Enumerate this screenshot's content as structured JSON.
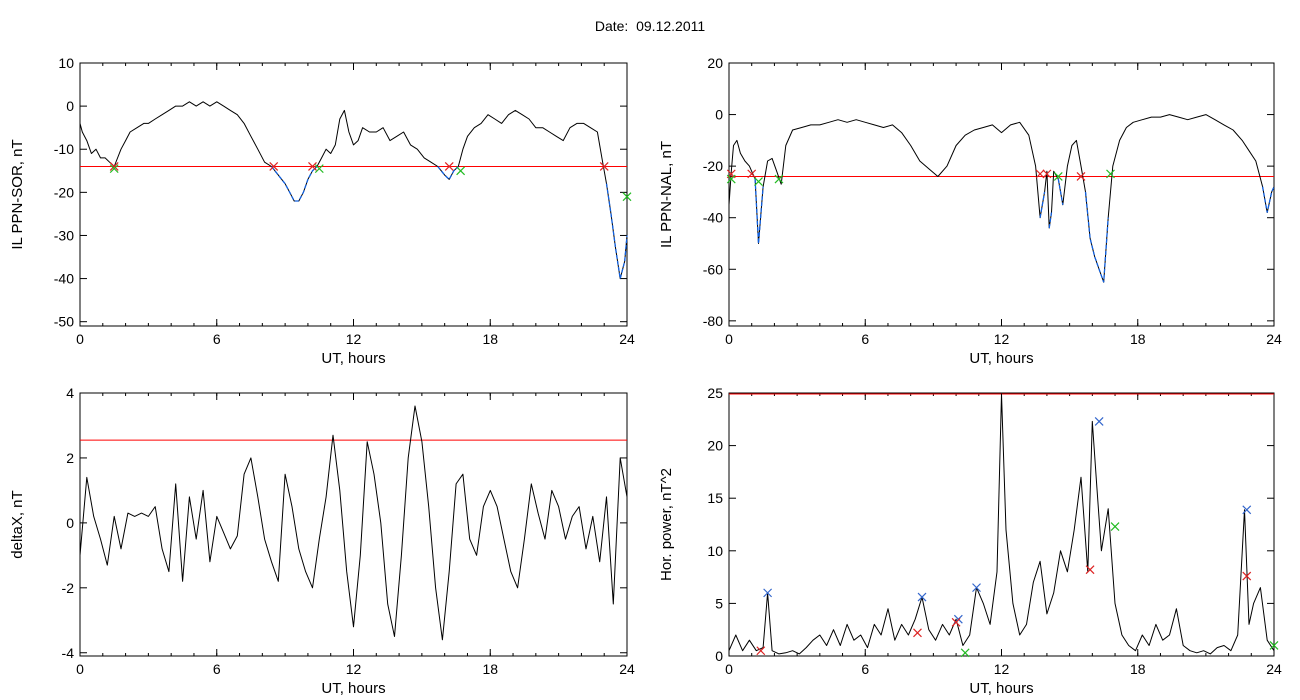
{
  "header": {
    "date_label": "Date:",
    "date_value": "09.12.2011"
  },
  "chart_data": [
    {
      "type": "line",
      "xlabel": "UT, hours",
      "ylabel": "IL PPN-SOR, nT",
      "xlim": [
        0,
        24
      ],
      "ylim": [
        -51,
        10
      ],
      "xticks": [
        0,
        6,
        12,
        18,
        24
      ],
      "yticks": [
        10,
        0,
        -10,
        -20,
        -30,
        -40,
        -50
      ],
      "threshold": -14,
      "colors": {
        "line": "#000000",
        "threshold": "#ff0000",
        "highlight": "#1060e0",
        "start_marker": "#dd2222",
        "end_marker": "#22bb22"
      },
      "series": [
        {
          "values_x": [
            0,
            0.1,
            0.3,
            0.5,
            0.7,
            0.9,
            1.1,
            1.3,
            1.5,
            1.8,
            2.0,
            2.2,
            2.5,
            2.8,
            3.0,
            3.3,
            3.6,
            3.9,
            4.2,
            4.5,
            4.8,
            5.1,
            5.4,
            5.7,
            6.0,
            6.3,
            6.6,
            6.9,
            7.2,
            7.5,
            7.8,
            8.1,
            8.4,
            8.7,
            9.0,
            9.2,
            9.4,
            9.6,
            9.8,
            10.0,
            10.2,
            10.4,
            10.6,
            10.8,
            11.0,
            11.2,
            11.4,
            11.6,
            11.8,
            12.0,
            12.2,
            12.4,
            12.7,
            13.0,
            13.3,
            13.6,
            13.9,
            14.2,
            14.5,
            14.8,
            15.1,
            15.4,
            15.7,
            16.0,
            16.2,
            16.4,
            16.6,
            16.8,
            17.0,
            17.3,
            17.6,
            17.9,
            18.2,
            18.5,
            18.8,
            19.1,
            19.4,
            19.7,
            20.0,
            20.3,
            20.6,
            20.9,
            21.2,
            21.5,
            21.8,
            22.1,
            22.4,
            22.7,
            22.9,
            23.1,
            23.3,
            23.5,
            23.7,
            23.9,
            24.0
          ],
          "values_y": [
            -4,
            -6,
            -8,
            -11,
            -10,
            -12,
            -12,
            -13,
            -14,
            -10,
            -8,
            -6,
            -5,
            -4,
            -4,
            -3,
            -2,
            -1,
            0,
            0,
            1,
            0,
            1,
            0,
            1,
            0,
            -1,
            -2,
            -4,
            -7,
            -10,
            -13,
            -14,
            -16,
            -18,
            -20,
            -22,
            -22,
            -20,
            -17,
            -15,
            -14,
            -12,
            -10,
            -11,
            -9,
            -3,
            -1,
            -6,
            -9,
            -8,
            -5,
            -6,
            -6,
            -5,
            -8,
            -7,
            -6,
            -9,
            -10,
            -12,
            -13,
            -14,
            -16,
            -17,
            -15,
            -14,
            -10,
            -7,
            -5,
            -4,
            -2,
            -3,
            -4,
            -2,
            -1,
            -2,
            -3,
            -5,
            -5,
            -6,
            -7,
            -8,
            -5,
            -4,
            -4,
            -5,
            -6,
            -12,
            -18,
            -25,
            -33,
            -40,
            -36,
            -30
          ]
        }
      ],
      "start_markers": [
        [
          1.5,
          -14
        ],
        [
          8.5,
          -14
        ],
        [
          10.2,
          -14
        ],
        [
          16.2,
          -14
        ],
        [
          23.0,
          -14
        ]
      ],
      "end_markers": [
        [
          1.5,
          -14.5
        ],
        [
          10.5,
          -14.5
        ],
        [
          16.7,
          -15
        ],
        [
          24.0,
          -21
        ]
      ]
    },
    {
      "type": "line",
      "xlabel": "UT, hours",
      "ylabel": "IL PPN-NAL, nT",
      "xlim": [
        0,
        24
      ],
      "ylim": [
        -82,
        20
      ],
      "xticks": [
        0,
        6,
        12,
        18,
        24
      ],
      "yticks": [
        20,
        0,
        -20,
        -40,
        -60,
        -80
      ],
      "threshold": -24,
      "colors": {
        "line": "#000000",
        "threshold": "#ff0000",
        "highlight": "#1060e0",
        "start_marker": "#dd2222",
        "end_marker": "#22bb22"
      },
      "series": [
        {
          "values_x": [
            0,
            0.1,
            0.2,
            0.35,
            0.5,
            0.7,
            0.9,
            1.0,
            1.15,
            1.3,
            1.5,
            1.7,
            1.9,
            2.1,
            2.3,
            2.5,
            2.8,
            3.2,
            3.6,
            4.0,
            4.4,
            4.8,
            5.2,
            5.6,
            6.0,
            6.4,
            6.8,
            7.2,
            7.6,
            8.0,
            8.4,
            8.8,
            9.2,
            9.6,
            10.0,
            10.4,
            10.8,
            11.2,
            11.6,
            12.0,
            12.4,
            12.8,
            13.2,
            13.5,
            13.7,
            13.9,
            14.0,
            14.1,
            14.2,
            14.3,
            14.5,
            14.7,
            14.9,
            15.1,
            15.3,
            15.5,
            15.7,
            15.9,
            16.1,
            16.3,
            16.5,
            16.7,
            16.9,
            17.2,
            17.5,
            17.8,
            18.2,
            18.6,
            19.0,
            19.4,
            19.8,
            20.2,
            20.6,
            21.0,
            21.4,
            21.8,
            22.2,
            22.6,
            22.9,
            23.2,
            23.5,
            23.7,
            23.9,
            24.0
          ],
          "values_y": [
            -35,
            -22,
            -12,
            -10,
            -15,
            -18,
            -20,
            -22,
            -25,
            -50,
            -28,
            -18,
            -17,
            -22,
            -27,
            -12,
            -6,
            -5,
            -4,
            -4,
            -3,
            -2,
            -3,
            -2,
            -3,
            -4,
            -5,
            -4,
            -7,
            -12,
            -18,
            -21,
            -24,
            -20,
            -12,
            -8,
            -6,
            -5,
            -4,
            -7,
            -4,
            -3,
            -8,
            -20,
            -40,
            -30,
            -22,
            -44,
            -38,
            -22,
            -25,
            -35,
            -20,
            -12,
            -10,
            -20,
            -30,
            -48,
            -55,
            -60,
            -65,
            -40,
            -20,
            -10,
            -5,
            -3,
            -2,
            -1,
            -1,
            0,
            -1,
            -2,
            -1,
            0,
            -2,
            -4,
            -6,
            -10,
            -14,
            -18,
            -28,
            -38,
            -30,
            -28
          ]
        }
      ],
      "start_markers": [
        [
          0.1,
          -23
        ],
        [
          1.0,
          -23
        ],
        [
          13.7,
          -23
        ],
        [
          14.0,
          -23
        ],
        [
          15.5,
          -24
        ]
      ],
      "end_markers": [
        [
          0.1,
          -25
        ],
        [
          1.3,
          -26
        ],
        [
          2.2,
          -25
        ],
        [
          14.5,
          -24
        ],
        [
          16.8,
          -23
        ]
      ]
    },
    {
      "type": "line",
      "xlabel": "UT, hours",
      "ylabel": "deltaX, nT",
      "xlim": [
        0,
        24
      ],
      "ylim": [
        -4.1,
        4
      ],
      "xticks": [
        0,
        6,
        12,
        18,
        24
      ],
      "yticks": [
        4,
        2,
        0,
        -2,
        -4
      ],
      "threshold": 2.55,
      "colors": {
        "line": "#000000",
        "threshold": "#ff0000"
      },
      "series": [
        {
          "values_x": [
            0,
            0.3,
            0.6,
            0.9,
            1.2,
            1.5,
            1.8,
            2.1,
            2.4,
            2.7,
            3.0,
            3.3,
            3.6,
            3.9,
            4.2,
            4.5,
            4.8,
            5.1,
            5.4,
            5.7,
            6.0,
            6.3,
            6.6,
            6.9,
            7.2,
            7.5,
            7.8,
            8.1,
            8.4,
            8.7,
            9.0,
            9.3,
            9.6,
            9.9,
            10.2,
            10.5,
            10.8,
            11.1,
            11.4,
            11.7,
            12.0,
            12.3,
            12.6,
            12.9,
            13.2,
            13.5,
            13.8,
            14.1,
            14.4,
            14.7,
            15.0,
            15.3,
            15.6,
            15.9,
            16.2,
            16.5,
            16.8,
            17.1,
            17.4,
            17.7,
            18.0,
            18.3,
            18.6,
            18.9,
            19.2,
            19.5,
            19.8,
            20.1,
            20.4,
            20.7,
            21.0,
            21.3,
            21.6,
            21.9,
            22.2,
            22.5,
            22.8,
            23.1,
            23.4,
            23.7,
            24.0
          ],
          "values_y": [
            -1,
            1.4,
            0.2,
            -0.5,
            -1.3,
            0.2,
            -0.8,
            0.3,
            0.2,
            0.3,
            0.2,
            0.5,
            -0.8,
            -1.5,
            1.2,
            -1.8,
            0.8,
            -0.5,
            1.0,
            -1.2,
            0.2,
            -0.3,
            -0.8,
            -0.4,
            1.5,
            2.0,
            0.8,
            -0.5,
            -1.2,
            -1.8,
            1.5,
            0.5,
            -0.8,
            -1.5,
            -2.0,
            -0.5,
            0.8,
            2.7,
            1.0,
            -1.5,
            -3.2,
            -1.0,
            2.5,
            1.5,
            0,
            -2.5,
            -3.5,
            -1.0,
            2.0,
            3.6,
            2.5,
            0.5,
            -2.0,
            -3.6,
            -1.5,
            1.2,
            1.5,
            -0.5,
            -1.0,
            0.5,
            1.0,
            0.5,
            -0.5,
            -1.5,
            -2.0,
            -0.5,
            1.2,
            0.3,
            -0.5,
            1.0,
            0.5,
            -0.5,
            0.2,
            0.5,
            -0.8,
            0.2,
            -1.2,
            0.8,
            -2.5,
            2.0,
            0.8
          ]
        }
      ]
    },
    {
      "type": "line",
      "xlabel": "UT, hours",
      "ylabel": "Hor. power, nT^2",
      "xlim": [
        0,
        24
      ],
      "ylim": [
        0,
        25
      ],
      "xticks": [
        0,
        6,
        12,
        18,
        24
      ],
      "yticks": [
        25,
        20,
        15,
        10,
        5,
        0
      ],
      "threshold": 24.9,
      "colors": {
        "line": "#000000",
        "threshold": "#ff0000",
        "peak_marker": "#3366cc",
        "start_marker": "#dd2222",
        "end_marker": "#22bb22"
      },
      "series": [
        {
          "values_x": [
            0,
            0.3,
            0.6,
            0.9,
            1.2,
            1.5,
            1.7,
            1.9,
            2.2,
            2.5,
            2.8,
            3.1,
            3.4,
            3.7,
            4.0,
            4.3,
            4.6,
            4.9,
            5.2,
            5.5,
            5.8,
            6.1,
            6.4,
            6.7,
            7.0,
            7.3,
            7.6,
            7.9,
            8.2,
            8.5,
            8.8,
            9.1,
            9.4,
            9.7,
            10.0,
            10.3,
            10.6,
            10.9,
            11.2,
            11.5,
            11.8,
            12.0,
            12.2,
            12.5,
            12.8,
            13.1,
            13.4,
            13.7,
            14.0,
            14.3,
            14.6,
            14.9,
            15.2,
            15.5,
            15.8,
            16.0,
            16.2,
            16.4,
            16.7,
            17.0,
            17.3,
            17.6,
            17.9,
            18.2,
            18.5,
            18.8,
            19.1,
            19.4,
            19.7,
            20.0,
            20.3,
            20.6,
            20.9,
            21.2,
            21.5,
            21.8,
            22.1,
            22.4,
            22.7,
            22.9,
            23.1,
            23.4,
            23.7,
            24.0
          ],
          "values_y": [
            0.5,
            2.0,
            0.5,
            1.5,
            0.5,
            0.8,
            6.0,
            0.5,
            0.2,
            0.3,
            0.5,
            0.2,
            0.8,
            1.5,
            2.0,
            1.0,
            2.5,
            1.0,
            3.0,
            1.5,
            2.0,
            0.8,
            3.0,
            2.0,
            4.5,
            1.5,
            3.0,
            2.0,
            3.5,
            5.6,
            2.5,
            1.5,
            3.0,
            2.0,
            3.5,
            1.0,
            2.0,
            6.5,
            5.0,
            3.0,
            8.0,
            24.9,
            12.0,
            5.0,
            2.0,
            3.0,
            7.0,
            9.0,
            4.0,
            6.0,
            10.0,
            8.0,
            12.0,
            17.0,
            8.0,
            22.3,
            16.0,
            10.0,
            14.0,
            5.0,
            2.0,
            1.0,
            0.5,
            2.0,
            1.0,
            3.0,
            1.5,
            2.0,
            4.5,
            1.0,
            0.5,
            0.3,
            0.5,
            0.2,
            0.8,
            1.0,
            0.5,
            2.0,
            13.9,
            3.0,
            5.0,
            6.5,
            1.5,
            0.5
          ]
        }
      ],
      "peak_markers": [
        [
          1.7,
          6.0
        ],
        [
          8.5,
          5.6
        ],
        [
          10.1,
          3.5
        ],
        [
          10.9,
          6.5
        ],
        [
          16.3,
          22.3
        ],
        [
          22.8,
          13.9
        ]
      ],
      "start_markers": [
        [
          1.4,
          0.5
        ],
        [
          8.3,
          2.2
        ],
        [
          10.0,
          3.2
        ],
        [
          15.9,
          8.2
        ],
        [
          22.8,
          7.6
        ]
      ],
      "end_markers": [
        [
          10.4,
          0.3
        ],
        [
          17.0,
          12.3
        ],
        [
          24.0,
          1.0
        ]
      ]
    }
  ]
}
